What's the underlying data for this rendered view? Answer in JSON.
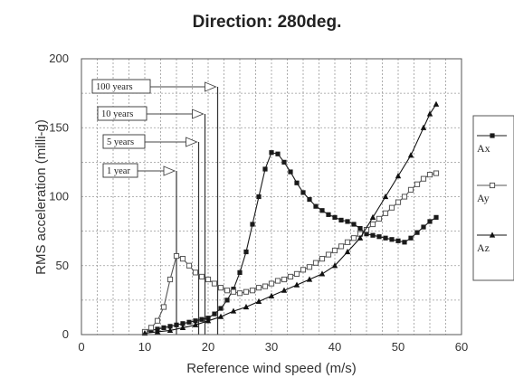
{
  "chart_data": {
    "type": "line",
    "title": "Direction: 280deg.",
    "xlabel": "Reference wind speed (m/s)",
    "ylabel": "RMS acceleration (milli-g)",
    "xlim": [
      0,
      60
    ],
    "ylim": [
      0,
      200
    ],
    "xticks": [
      0,
      10,
      20,
      30,
      40,
      50,
      60
    ],
    "yticks": [
      0,
      50,
      100,
      150,
      200
    ],
    "grid": true,
    "legend_position": "right",
    "annotations": [
      {
        "text": "100 years",
        "x": 21.5
      },
      {
        "text": "10 years",
        "x": 19.5
      },
      {
        "text": "5 years",
        "x": 18.5
      },
      {
        "text": "1 year",
        "x": 15.0
      }
    ],
    "colors": {
      "Ax": "#1a1a1a",
      "Ay": "#555555",
      "Az": "#111111"
    },
    "series": [
      {
        "name": "Ax",
        "marker": "square-filled",
        "points": [
          [
            10,
            2
          ],
          [
            11,
            3
          ],
          [
            12,
            4
          ],
          [
            13,
            5
          ],
          [
            14,
            6
          ],
          [
            15,
            7
          ],
          [
            16,
            8
          ],
          [
            17,
            9
          ],
          [
            18,
            10
          ],
          [
            19,
            11
          ],
          [
            20,
            12
          ],
          [
            21,
            15
          ],
          [
            22,
            19
          ],
          [
            23,
            25
          ],
          [
            24,
            33
          ],
          [
            25,
            45
          ],
          [
            26,
            60
          ],
          [
            27,
            80
          ],
          [
            28,
            100
          ],
          [
            29,
            120
          ],
          [
            30,
            132
          ],
          [
            31,
            131
          ],
          [
            32,
            125
          ],
          [
            33,
            118
          ],
          [
            34,
            110
          ],
          [
            35,
            103
          ],
          [
            36,
            98
          ],
          [
            37,
            93
          ],
          [
            38,
            90
          ],
          [
            39,
            87
          ],
          [
            40,
            85
          ],
          [
            41,
            83
          ],
          [
            42,
            82
          ],
          [
            43,
            80
          ],
          [
            44,
            77
          ],
          [
            45,
            73
          ],
          [
            46,
            72
          ],
          [
            47,
            71
          ],
          [
            48,
            70
          ],
          [
            49,
            69
          ],
          [
            50,
            68
          ],
          [
            51,
            67
          ],
          [
            52,
            70
          ],
          [
            53,
            74
          ],
          [
            54,
            78
          ],
          [
            55,
            82
          ],
          [
            56,
            85
          ]
        ]
      },
      {
        "name": "Ay",
        "marker": "square-open",
        "points": [
          [
            10,
            2
          ],
          [
            11,
            5
          ],
          [
            12,
            10
          ],
          [
            13,
            20
          ],
          [
            14,
            40
          ],
          [
            15,
            57
          ],
          [
            16,
            55
          ],
          [
            17,
            50
          ],
          [
            18,
            45
          ],
          [
            19,
            42
          ],
          [
            20,
            40
          ],
          [
            21,
            37
          ],
          [
            22,
            34
          ],
          [
            23,
            32
          ],
          [
            24,
            31
          ],
          [
            25,
            30
          ],
          [
            26,
            31
          ],
          [
            27,
            32
          ],
          [
            28,
            34
          ],
          [
            29,
            35
          ],
          [
            30,
            37
          ],
          [
            31,
            39
          ],
          [
            32,
            40
          ],
          [
            33,
            42
          ],
          [
            34,
            44
          ],
          [
            35,
            47
          ],
          [
            36,
            49
          ],
          [
            37,
            52
          ],
          [
            38,
            55
          ],
          [
            39,
            58
          ],
          [
            40,
            61
          ],
          [
            41,
            64
          ],
          [
            42,
            67
          ],
          [
            43,
            70
          ],
          [
            44,
            73
          ],
          [
            45,
            76
          ],
          [
            46,
            80
          ],
          [
            47,
            84
          ],
          [
            48,
            88
          ],
          [
            49,
            92
          ],
          [
            50,
            96
          ],
          [
            51,
            100
          ],
          [
            52,
            105
          ],
          [
            53,
            109
          ],
          [
            54,
            113
          ],
          [
            55,
            116
          ],
          [
            56,
            117
          ]
        ]
      },
      {
        "name": "Az",
        "marker": "triangle-filled",
        "points": [
          [
            10,
            1
          ],
          [
            12,
            2
          ],
          [
            14,
            3
          ],
          [
            16,
            5
          ],
          [
            18,
            7
          ],
          [
            20,
            10
          ],
          [
            22,
            13
          ],
          [
            24,
            17
          ],
          [
            26,
            20
          ],
          [
            28,
            24
          ],
          [
            30,
            28
          ],
          [
            32,
            32
          ],
          [
            34,
            36
          ],
          [
            36,
            40
          ],
          [
            38,
            44
          ],
          [
            40,
            50
          ],
          [
            42,
            60
          ],
          [
            44,
            70
          ],
          [
            46,
            85
          ],
          [
            48,
            100
          ],
          [
            50,
            115
          ],
          [
            52,
            130
          ],
          [
            54,
            150
          ],
          [
            55,
            160
          ],
          [
            56,
            167
          ]
        ]
      }
    ]
  }
}
